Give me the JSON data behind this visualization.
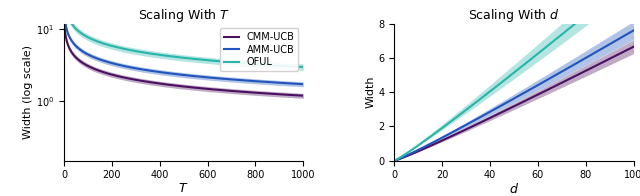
{
  "left_title": "Scaling With $T$",
  "right_title": "Scaling With $d$",
  "left_xlabel": "$T$",
  "right_xlabel": "$d$",
  "left_ylabel": "Width (log scale)",
  "right_ylabel": "Width",
  "colors": {
    "CMM-UCB": "#4b1060",
    "AMM-UCB": "#2255bb",
    "OFUL": "#2ab5aa"
  },
  "legend_labels": [
    "CMM-UCB",
    "AMM-UCB",
    "OFUL"
  ],
  "left_xlim": [
    0,
    1000
  ],
  "right_xlim": [
    0,
    100
  ],
  "right_ylim": [
    0,
    8
  ],
  "band_alpha": 0.35
}
